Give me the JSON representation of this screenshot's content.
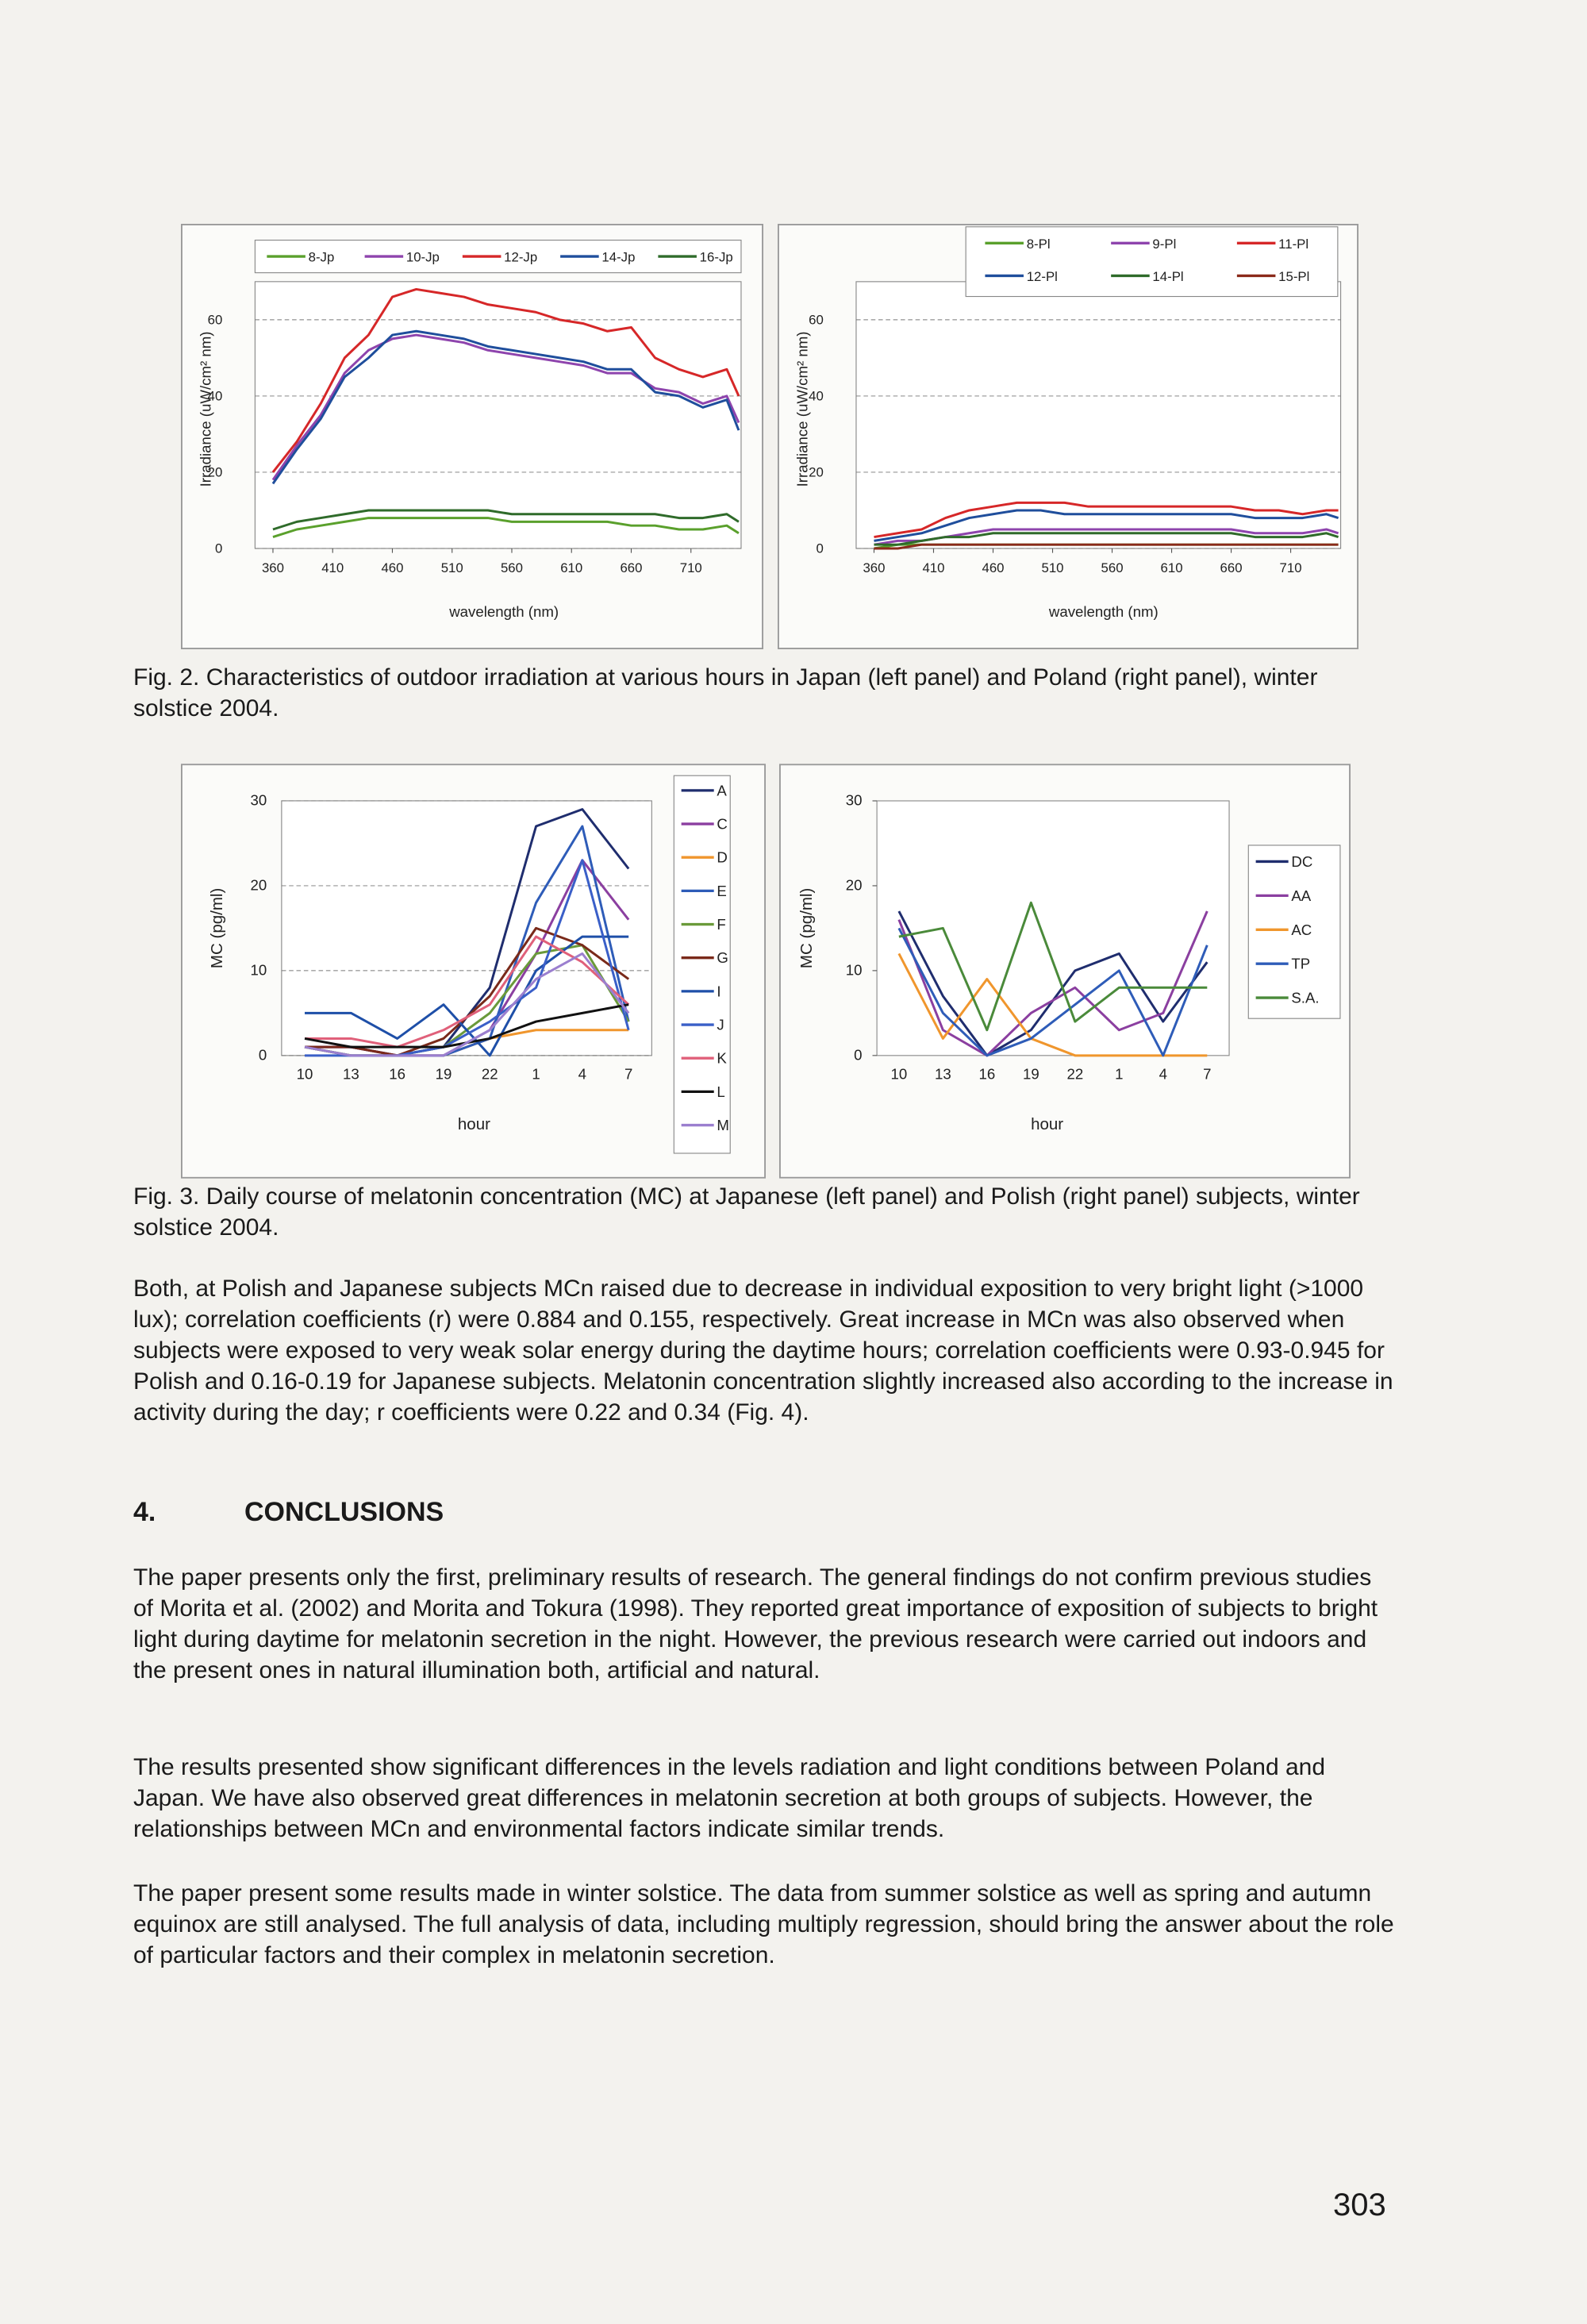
{
  "chart_data": [
    {
      "type": "line",
      "xlabel": "wavelength (nm)",
      "ylabel": "Irradiance (uW/cm² nm)",
      "x": [
        360,
        380,
        400,
        420,
        440,
        460,
        480,
        500,
        520,
        540,
        560,
        580,
        600,
        620,
        640,
        660,
        680,
        700,
        720,
        740,
        750
      ],
      "xlim": [
        345,
        752
      ],
      "xticks": [
        360,
        410,
        460,
        510,
        560,
        610,
        660,
        710
      ],
      "ylim": [
        0,
        70
      ],
      "yticks": [
        0,
        20,
        40,
        60
      ],
      "grid": true,
      "series": [
        {
          "name": "8-Jp",
          "color": "#5aa02c",
          "values": [
            3,
            5,
            6,
            7,
            8,
            8,
            8,
            8,
            8,
            8,
            7,
            7,
            7,
            7,
            7,
            6,
            6,
            5,
            5,
            6,
            4
          ]
        },
        {
          "name": "10-Jp",
          "color": "#8e44ad",
          "values": [
            18,
            27,
            35,
            46,
            52,
            55,
            56,
            55,
            54,
            52,
            51,
            50,
            49,
            48,
            46,
            46,
            42,
            41,
            38,
            40,
            33
          ]
        },
        {
          "name": "12-Jp",
          "color": "#d62728",
          "values": [
            20,
            28,
            38,
            50,
            56,
            66,
            68,
            67,
            66,
            64,
            63,
            62,
            60,
            59,
            57,
            58,
            50,
            47,
            45,
            47,
            40
          ]
        },
        {
          "name": "14-Jp",
          "color": "#1f4e9c",
          "values": [
            17,
            26,
            34,
            45,
            50,
            56,
            57,
            56,
            55,
            53,
            52,
            51,
            50,
            49,
            47,
            47,
            41,
            40,
            37,
            39,
            31
          ]
        },
        {
          "name": "16-Jp",
          "color": "#2f6b2a",
          "values": [
            5,
            7,
            8,
            9,
            10,
            10,
            10,
            10,
            10,
            10,
            9,
            9,
            9,
            9,
            9,
            9,
            9,
            8,
            8,
            9,
            7
          ]
        }
      ]
    },
    {
      "type": "line",
      "xlabel": "wavelength (nm)",
      "ylabel": "Irradiance (uW/cm² nm)",
      "x": [
        360,
        380,
        400,
        420,
        440,
        460,
        480,
        500,
        520,
        540,
        560,
        580,
        600,
        620,
        640,
        660,
        680,
        700,
        720,
        740,
        750
      ],
      "xlim": [
        345,
        752
      ],
      "xticks": [
        360,
        410,
        460,
        510,
        560,
        610,
        660,
        710
      ],
      "ylim": [
        0,
        70
      ],
      "yticks": [
        0,
        20,
        40,
        60
      ],
      "grid": true,
      "series": [
        {
          "name": "8-Pl",
          "color": "#5aa02c",
          "values": [
            0,
            1,
            1,
            1,
            1,
            1,
            1,
            1,
            1,
            1,
            1,
            1,
            1,
            1,
            1,
            1,
            1,
            1,
            1,
            1,
            1
          ]
        },
        {
          "name": "9-Pl",
          "color": "#8e44ad",
          "values": [
            1,
            2,
            2,
            3,
            4,
            5,
            5,
            5,
            5,
            5,
            5,
            5,
            5,
            5,
            5,
            5,
            4,
            4,
            4,
            5,
            4
          ]
        },
        {
          "name": "11-Pl",
          "color": "#d62728",
          "values": [
            3,
            4,
            5,
            8,
            10,
            11,
            12,
            12,
            12,
            11,
            11,
            11,
            11,
            11,
            11,
            11,
            10,
            10,
            9,
            10,
            10
          ]
        },
        {
          "name": "12-Pl",
          "color": "#1f4e9c",
          "values": [
            2,
            3,
            4,
            6,
            8,
            9,
            10,
            10,
            9,
            9,
            9,
            9,
            9,
            9,
            9,
            9,
            8,
            8,
            8,
            9,
            8
          ]
        },
        {
          "name": "14-Pl",
          "color": "#2f6b2a",
          "values": [
            1,
            1,
            2,
            3,
            3,
            4,
            4,
            4,
            4,
            4,
            4,
            4,
            4,
            4,
            4,
            4,
            3,
            3,
            3,
            4,
            3
          ]
        },
        {
          "name": "15-Pl",
          "color": "#8b2a1a",
          "values": [
            0,
            0,
            1,
            1,
            1,
            1,
            1,
            1,
            1,
            1,
            1,
            1,
            1,
            1,
            1,
            1,
            1,
            1,
            1,
            1,
            1
          ]
        }
      ]
    },
    {
      "type": "line",
      "xlabel": "hour",
      "ylabel": "MC (pg/ml)",
      "categories": [
        "10",
        "13",
        "16",
        "19",
        "22",
        "1",
        "4",
        "7"
      ],
      "ylim": [
        0,
        30
      ],
      "yticks": [
        0,
        10,
        20,
        30
      ],
      "grid": true,
      "series": [
        {
          "name": "A",
          "color": "#1f2d6e",
          "values": [
            1,
            1,
            0,
            1,
            8,
            27,
            29,
            22
          ]
        },
        {
          "name": "C",
          "color": "#8b3fa0",
          "values": [
            1,
            1,
            0,
            0,
            3,
            12,
            23,
            16
          ]
        },
        {
          "name": "D",
          "color": "#f0962d",
          "values": [
            1,
            0,
            0,
            0,
            2,
            3,
            3,
            3
          ]
        },
        {
          "name": "E",
          "color": "#2e5cb8",
          "values": [
            1,
            0,
            0,
            0,
            2,
            18,
            27,
            4
          ]
        },
        {
          "name": "F",
          "color": "#6a9a3a",
          "values": [
            1,
            0,
            0,
            1,
            5,
            12,
            13,
            4
          ]
        },
        {
          "name": "G",
          "color": "#7a2a1a",
          "values": [
            1,
            1,
            0,
            2,
            7,
            15,
            13,
            9
          ]
        },
        {
          "name": "I",
          "color": "#1e4fa8",
          "values": [
            5,
            5,
            2,
            6,
            0,
            10,
            14,
            14
          ]
        },
        {
          "name": "J",
          "color": "#3a5fc8",
          "values": [
            0,
            0,
            0,
            1,
            4,
            8,
            23,
            3
          ]
        },
        {
          "name": "K",
          "color": "#e0607a",
          "values": [
            2,
            2,
            1,
            3,
            6,
            14,
            11,
            6
          ]
        },
        {
          "name": "L",
          "color": "#111111",
          "values": [
            2,
            1,
            1,
            1,
            2,
            4,
            5,
            6
          ]
        },
        {
          "name": "M",
          "color": "#9b7fcf",
          "values": [
            1,
            0,
            0,
            0,
            3,
            9,
            12,
            5
          ]
        }
      ]
    },
    {
      "type": "line",
      "xlabel": "hour",
      "ylabel": "MC (pg/ml)",
      "categories": [
        "10",
        "13",
        "16",
        "19",
        "22",
        "1",
        "4",
        "7"
      ],
      "ylim": [
        0,
        30
      ],
      "yticks": [
        0,
        10,
        20,
        30
      ],
      "grid": false,
      "series": [
        {
          "name": "DC",
          "color": "#1f2d6e",
          "values": [
            17,
            7,
            0,
            3,
            10,
            12,
            4,
            11
          ]
        },
        {
          "name": "AA",
          "color": "#8b3fa0",
          "values": [
            16,
            3,
            0,
            5,
            8,
            3,
            5,
            17
          ]
        },
        {
          "name": "AC",
          "color": "#f0962d",
          "values": [
            12,
            2,
            9,
            2,
            0,
            0,
            0,
            0
          ]
        },
        {
          "name": "TP",
          "color": "#2e5cb8",
          "values": [
            15,
            5,
            0,
            2,
            6,
            10,
            0,
            13
          ]
        },
        {
          "name": "S.A.",
          "color": "#4a8a3a",
          "values": [
            14,
            15,
            3,
            18,
            4,
            8,
            8,
            8
          ]
        }
      ]
    }
  ],
  "figure_captions": [
    "Fig. 2. Characteristics of outdoor irradiation at various hours in Japan (left panel) and Poland (right panel), winter solstice 2004.",
    "Fig. 3. Daily course of melatonin concentration (MC) at Japanese (left panel) and Polish (right panel) subjects, winter solstice 2004."
  ],
  "body": {
    "paragraph": "Both, at Polish and Japanese subjects MCn raised due to decrease in individual exposition to very bright light (>1000 lux); correlation coefficients (r) were 0.884 and 0.155, respectively. Great increase in MCn was also observed when subjects were exposed to very weak solar energy during the daytime hours; correlation coefficients were 0.93-0.945 for Polish and 0.16-0.19 for Japanese subjects. Melatonin concentration slightly increased also according to the increase in activity during the day; r coefficients were 0.22 and 0.34 (Fig. 4)."
  },
  "section": {
    "number": "4.",
    "title": "CONCLUSIONS",
    "paragraphs": [
      "The paper presents only the first, preliminary results of research. The general findings do not confirm previous studies of Morita et al. (2002) and Morita and Tokura (1998). They reported great importance of exposition of subjects to bright light during daytime for melatonin secretion in the night. However, the previous research were carried out indoors and the present ones in natural illumination both, artificial and natural.",
      "The results presented show significant differences in the levels radiation and light conditions between Poland and Japan. We have also observed great differences in melatonin secretion at both groups of subjects. However, the relationships between MCn and environmental factors indicate similar trends.",
      "The paper present some results made in winter solstice. The data from summer solstice as well as spring and autumn equinox are still analysed. The full analysis of data, including multiply regression, should bring the answer about the role of particular factors and their complex in melatonin secretion."
    ]
  },
  "page_number": "303"
}
